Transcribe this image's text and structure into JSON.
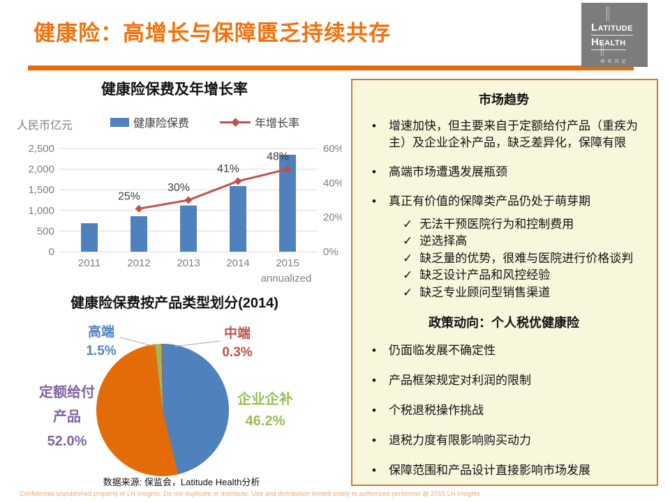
{
  "page": {
    "title": "健康险：高增长与保障匮乏持续共存",
    "footer": "Confidential unpublished property of LH Insights. Do not duplicate or distribute. Use and distribution limited solely to authorized personnel @ 2015 LH Insights"
  },
  "logo": {
    "word1": "Latitude",
    "word2": "Health",
    "caption": "村夫日记"
  },
  "colors": {
    "accent_orange": "#EE720D",
    "rule_orange": "#E36C0A",
    "panel_bg": "#F7F7DC",
    "panel_border": "#C87B3C",
    "logo_gray": "#7C7C7C",
    "gray_text": "#7F7F7F",
    "grid_gray": "#D9D9D9",
    "footer_orange": "#EBA463",
    "bar_blue": "#4F81BD",
    "line_red": "#C0504D",
    "pie_orange": "#E36C09",
    "pie_green": "#9BBB59",
    "purple_text": "#8064A2",
    "callout_line_gray": "#A6A6A6"
  },
  "chart_data": [
    {
      "type": "bar",
      "title": "健康险保费及年增长率",
      "categories": [
        "2011",
        "2012",
        "2013",
        "2014",
        "2015"
      ],
      "series": [
        {
          "name": "健康险保费",
          "type": "bar",
          "axis": "left",
          "color": "#4F81BD",
          "values": [
            690,
            860,
            1120,
            1590,
            2350
          ]
        },
        {
          "name": "年增长率",
          "type": "line",
          "axis": "right",
          "color": "#C0504D",
          "values": [
            null,
            25,
            30,
            41,
            48
          ],
          "labels": [
            "",
            "25%",
            "30%",
            "41%",
            "48%"
          ]
        }
      ],
      "left_axis": {
        "label": "人民币亿元",
        "min": 0,
        "max": 2500,
        "ticks": [
          "0",
          "500",
          "1,000",
          "1,500",
          "2,000",
          "2,500"
        ]
      },
      "right_axis": {
        "min": 0,
        "max": 60,
        "ticks": [
          "0%",
          "20%",
          "40%",
          "60%"
        ]
      },
      "x_note": "annualized",
      "grid": true,
      "legend_position": "top"
    },
    {
      "type": "pie",
      "title": "健康险保费按产品类型划分(2014)",
      "slices": [
        {
          "label": "企业企补",
          "value": 46.2,
          "color": "#4F81BD"
        },
        {
          "label": "定额给付产品",
          "value": 52.0,
          "color": "#E36C09"
        },
        {
          "label": "高端",
          "value": 1.5,
          "color": "#9BBB59"
        },
        {
          "label": "中端",
          "value": 0.3,
          "color": "#C0504D"
        }
      ],
      "start_angle_deg": 0,
      "source": "数据来源: 保监会，Latitude Health分析"
    }
  ],
  "pie_chart": {
    "callouts": {
      "gaoduan": {
        "line1": "高端",
        "pct": "1.5%",
        "color": "#4F81BD"
      },
      "zhongduan": {
        "line1": "中端",
        "pct": "0.3%",
        "color": "#C0504D"
      },
      "dinge": {
        "line1": "定额给付",
        "line2": "产品",
        "pct": "52.0%",
        "color": "#8064A2"
      },
      "qiye": {
        "line1": "企业企补",
        "pct": "46.2%",
        "color": "#9BBB59"
      }
    }
  },
  "panel": {
    "trends_title": "市场趋势",
    "trend_bullets": [
      "增速加快，但主要来自于定额给付产品（重疾为主）及企业企补产品，缺乏差异化，保障有限",
      "高端市场遭遇发展瓶颈",
      "真正有价值的保障类产品仍处于萌芽期"
    ],
    "check_icon": "✓",
    "check_items": [
      "无法干预医院行为和控制费用",
      "逆选择高",
      "缺乏量的优势，很难与医院进行价格谈判",
      "缺乏设计产品和风控经验",
      "缺乏专业顾问型销售渠道"
    ],
    "policy_title": "政策动向：个人税优健康险",
    "policy_bullets": [
      "仍面临发展不确定性",
      "产品框架规定对利润的限制",
      "个税退税操作挑战",
      "退税力度有限影响购买动力",
      "保障范围和产品设计直接影响市场发展"
    ]
  }
}
